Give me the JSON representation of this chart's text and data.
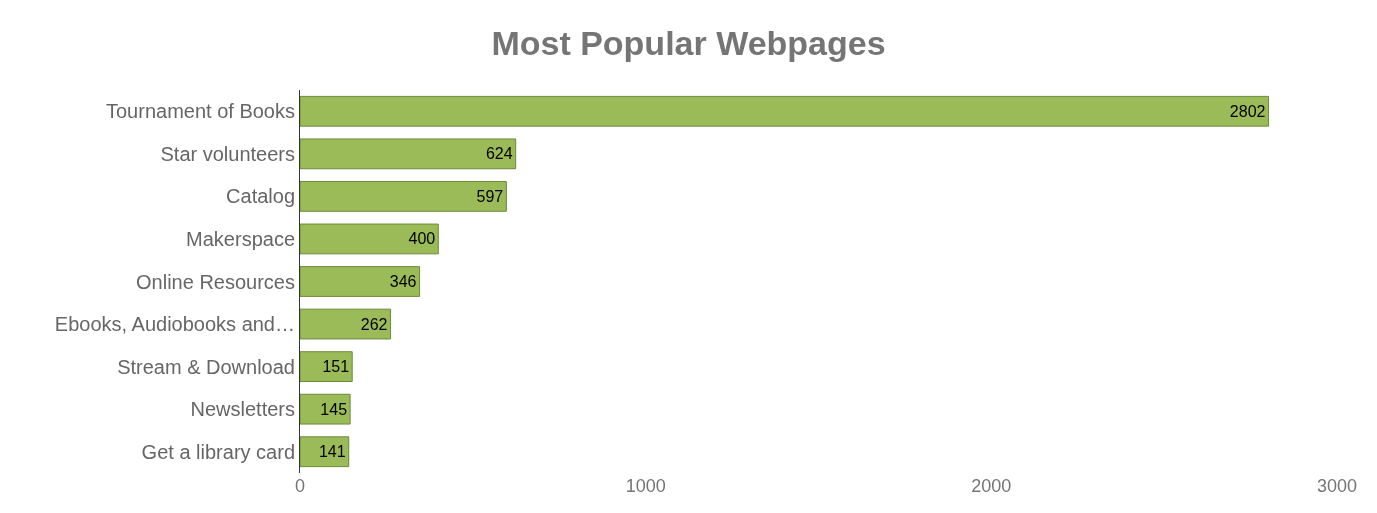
{
  "chart_data": {
    "type": "bar",
    "orientation": "horizontal",
    "title": "Most Popular Webpages",
    "categories": [
      "Tournament of Books",
      "Star volunteers",
      "Catalog",
      "Makerspace",
      "Online Resources",
      "Ebooks, Audiobooks and…",
      "Stream & Download",
      "Newsletters",
      "Get a library card"
    ],
    "values": [
      2802,
      624,
      597,
      400,
      346,
      262,
      151,
      145,
      141
    ],
    "color": "#9bbb59",
    "xlim": [
      0,
      3000
    ],
    "xticks": [
      0,
      1000,
      2000,
      3000
    ],
    "grid": false,
    "data_labels": true
  }
}
